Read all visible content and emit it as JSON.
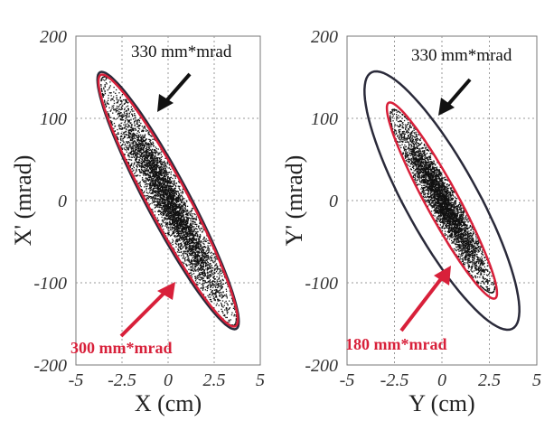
{
  "chart_data": [
    {
      "type": "scatter",
      "title": "",
      "xlabel": "X (cm)",
      "ylabel": "X' (mrad)",
      "xlim": [
        -5,
        5
      ],
      "ylim": [
        -200,
        200
      ],
      "xticks": [
        "-5",
        "-2.5",
        "0",
        "2.5",
        "5"
      ],
      "yticks": [
        "200",
        "100",
        "0",
        "-100",
        "-200"
      ],
      "grid": true,
      "series": [
        {
          "kind": "points",
          "description": "beam particles",
          "color": "#111111",
          "count": 5000,
          "center": [
            0,
            0
          ],
          "semi_major": [
            3.6,
            -150
          ],
          "semi_minor": [
            0.7,
            20
          ]
        }
      ],
      "ellipses": [
        {
          "label": "330 mm*mrad",
          "color": "#2a2a3a",
          "center": [
            0,
            0
          ],
          "semi_major": [
            3.75,
            -155
          ],
          "semi_minor": [
            0.8,
            22
          ]
        },
        {
          "label": "300 mm*mrad",
          "color": "#d8203a",
          "center": [
            0,
            0
          ],
          "semi_major": [
            3.7,
            -152
          ],
          "semi_minor": [
            0.75,
            20
          ]
        }
      ],
      "annotations": [
        {
          "text": "330 mm*mrad",
          "color": "#111111",
          "arrow_to": [
            -0.8,
            110
          ]
        },
        {
          "text": "300 mm*mrad",
          "color": "#d8203a",
          "arrow_to": [
            0.8,
            -108
          ]
        }
      ]
    },
    {
      "type": "scatter",
      "title": "",
      "xlabel": "Y (cm)",
      "ylabel": "Y' (mrad)",
      "xlim": [
        -5,
        5
      ],
      "ylim": [
        -200,
        200
      ],
      "xticks": [
        "-5",
        "-2.5",
        "0",
        "2.5",
        "5"
      ],
      "yticks": [
        "200",
        "100",
        "0",
        "-100",
        "-200"
      ],
      "grid": true,
      "series": [
        {
          "kind": "points",
          "description": "beam particles",
          "color": "#111111",
          "count": 4500,
          "center": [
            0,
            0
          ],
          "semi_major": [
            2.7,
            -110
          ],
          "semi_minor": [
            0.55,
            18
          ]
        }
      ],
      "ellipses": [
        {
          "label": "330 mm*mrad",
          "color": "#2a2a3a",
          "center": [
            0,
            0
          ],
          "semi_major": [
            3.9,
            -152
          ],
          "semi_minor": [
            1.2,
            40
          ]
        },
        {
          "label": "180 mm*mrad",
          "color": "#d8203a",
          "center": [
            0,
            0
          ],
          "semi_major": [
            2.85,
            -118
          ],
          "semi_minor": [
            0.55,
            18
          ]
        }
      ],
      "annotations": [
        {
          "text": "330 mm*mrad",
          "color": "#111111",
          "arrow_to": [
            -0.3,
            110
          ]
        },
        {
          "text": "180 mm*mrad",
          "color": "#d8203a",
          "arrow_to": [
            0.3,
            -85
          ]
        }
      ]
    }
  ]
}
